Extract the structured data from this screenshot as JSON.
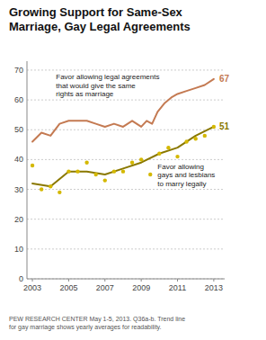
{
  "chart_data": {
    "type": "line",
    "title": "Growing Support for Same-Sex\nMarriage, Gay Legal Agreements",
    "footnote": "PEW RESEARCH CENTER  May 1-5, 2013.  Q36a-b.  Trend line\nfor gay marriage shows yearly averages for readability.",
    "annotations": [
      "Favor allowing legal agreements\nthat would give the same\nrights as marriage",
      "Favor allowing\ngays and lesbians\nto marry legally",
      "67",
      "51"
    ],
    "series": [
      {
        "type": "line",
        "color": "#c47a52",
        "x": [
          2003,
          2003.5,
          2004,
          2004.5,
          2005,
          2005.5,
          2006,
          2006.5,
          2007,
          2007.5,
          2008,
          2008.5,
          2009,
          2009.3,
          2009.6,
          2009.9,
          2010.3,
          2010.7,
          2011,
          2011.5,
          2012,
          2012.5,
          2013
        ],
        "values": [
          46,
          49,
          48,
          52,
          53,
          53,
          53,
          52,
          51,
          52,
          51,
          53,
          51,
          53,
          52,
          56,
          59,
          61,
          62,
          63,
          64,
          65,
          67
        ]
      },
      {
        "type": "scatter",
        "color": "#d4b800",
        "marker": "circle",
        "x": [
          2003,
          2003.5,
          2004,
          2004.5,
          2005,
          2005.5,
          2006,
          2006.5,
          2007,
          2007.5,
          2008,
          2008.5,
          2009,
          2009.5,
          2010,
          2010.5,
          2011,
          2011.5,
          2012,
          2012.5,
          2013
        ],
        "values": [
          38,
          30,
          31,
          29,
          36,
          36,
          39,
          35,
          33,
          36,
          36,
          39,
          40,
          35,
          42,
          44,
          41,
          46,
          47,
          48,
          51
        ]
      },
      {
        "type": "line",
        "color": "#8a7800",
        "x": [
          2003,
          2004,
          2005,
          2006,
          2007,
          2008,
          2009,
          2010,
          2011,
          2012,
          2013
        ],
        "values": [
          32,
          31,
          36,
          36,
          35,
          37,
          39,
          42,
          44,
          48,
          51
        ]
      }
    ],
    "xlim": [
      2002.7,
      2013.6
    ],
    "ylim": [
      0,
      73
    ],
    "xticks": [
      2003,
      2005,
      2007,
      2009,
      2011,
      2013
    ],
    "yticks": [
      0,
      10,
      20,
      30,
      40,
      50,
      60,
      70
    ],
    "grid": true
  }
}
